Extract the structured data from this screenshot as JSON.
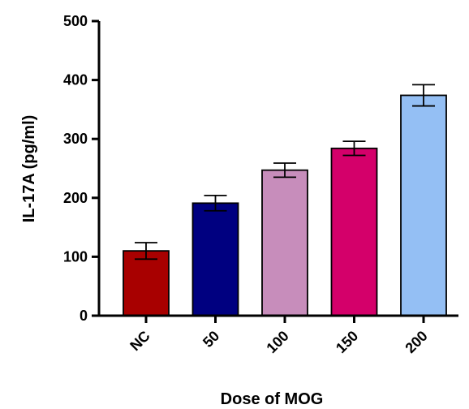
{
  "chart_data": {
    "type": "bar",
    "title": "",
    "xlabel": "Dose of MOG",
    "ylabel": "IL-17A (pg/ml)",
    "ylim": [
      0,
      500
    ],
    "yticks": [
      0,
      100,
      200,
      300,
      400,
      500
    ],
    "grid": false,
    "categories": [
      "NC",
      "50",
      "100",
      "150",
      "200"
    ],
    "values": [
      110,
      191,
      247,
      284,
      374
    ],
    "errors": [
      14,
      13,
      12,
      12,
      18
    ],
    "colors": [
      "#A80000",
      "#000080",
      "#C78DBB",
      "#D4006A",
      "#94BFF4"
    ]
  }
}
